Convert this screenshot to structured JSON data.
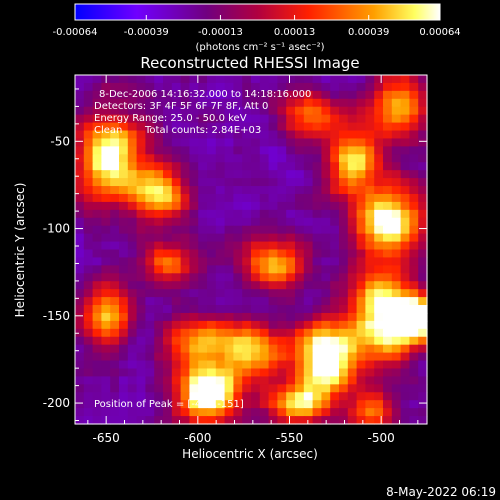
{
  "chart_data": {
    "type": "heatmap",
    "title": "Reconstructed RHESSI Image",
    "xlabel": "Heliocentric X (arcsec)",
    "ylabel": "Heliocentric Y (arcsec)",
    "xlim": [
      -667,
      -475
    ],
    "ylim": [
      -212,
      -12
    ],
    "x_ticks": [
      -650,
      -600,
      -550,
      -500
    ],
    "y_ticks": [
      -50,
      -100,
      -150,
      -200
    ],
    "x_tick_labels": [
      "-650",
      "-600",
      "-550",
      "-500"
    ],
    "y_tick_labels": [
      "-50",
      "-100",
      "-150",
      "-200"
    ],
    "colorbar": {
      "ticks": [
        -0.00064,
        -0.00039,
        -0.00013,
        0.00013,
        0.00039,
        0.00064
      ],
      "tick_labels": [
        "-0.00064",
        "-0.00039",
        "-0.00013",
        "0.00013",
        "0.00039",
        "0.00064"
      ],
      "range": [
        -0.00064,
        0.00064
      ],
      "units_label": "(photons cm⁻² s⁻¹ asec⁻²)",
      "colormap": [
        "#0000ff",
        "#8000ff",
        "#800080",
        "#ff0000",
        "#ff8000",
        "#ffff80",
        "#ffffff"
      ]
    },
    "annotations": [
      "8-Dec-2006 14:16:32.000 to 14:18:16.000",
      "Detectors: 3F 4F 5F 6F 7F 8F, Att 0",
      "Energy Range: 25.0 - 50.0 keV",
      "Clean",
      "Total counts: 2.84E+03"
    ],
    "peak_label": "Position of Peak = [-480,-151]",
    "peak_position": [
      -480,
      -151
    ],
    "footer_date": "8-May-2022 06:19"
  }
}
